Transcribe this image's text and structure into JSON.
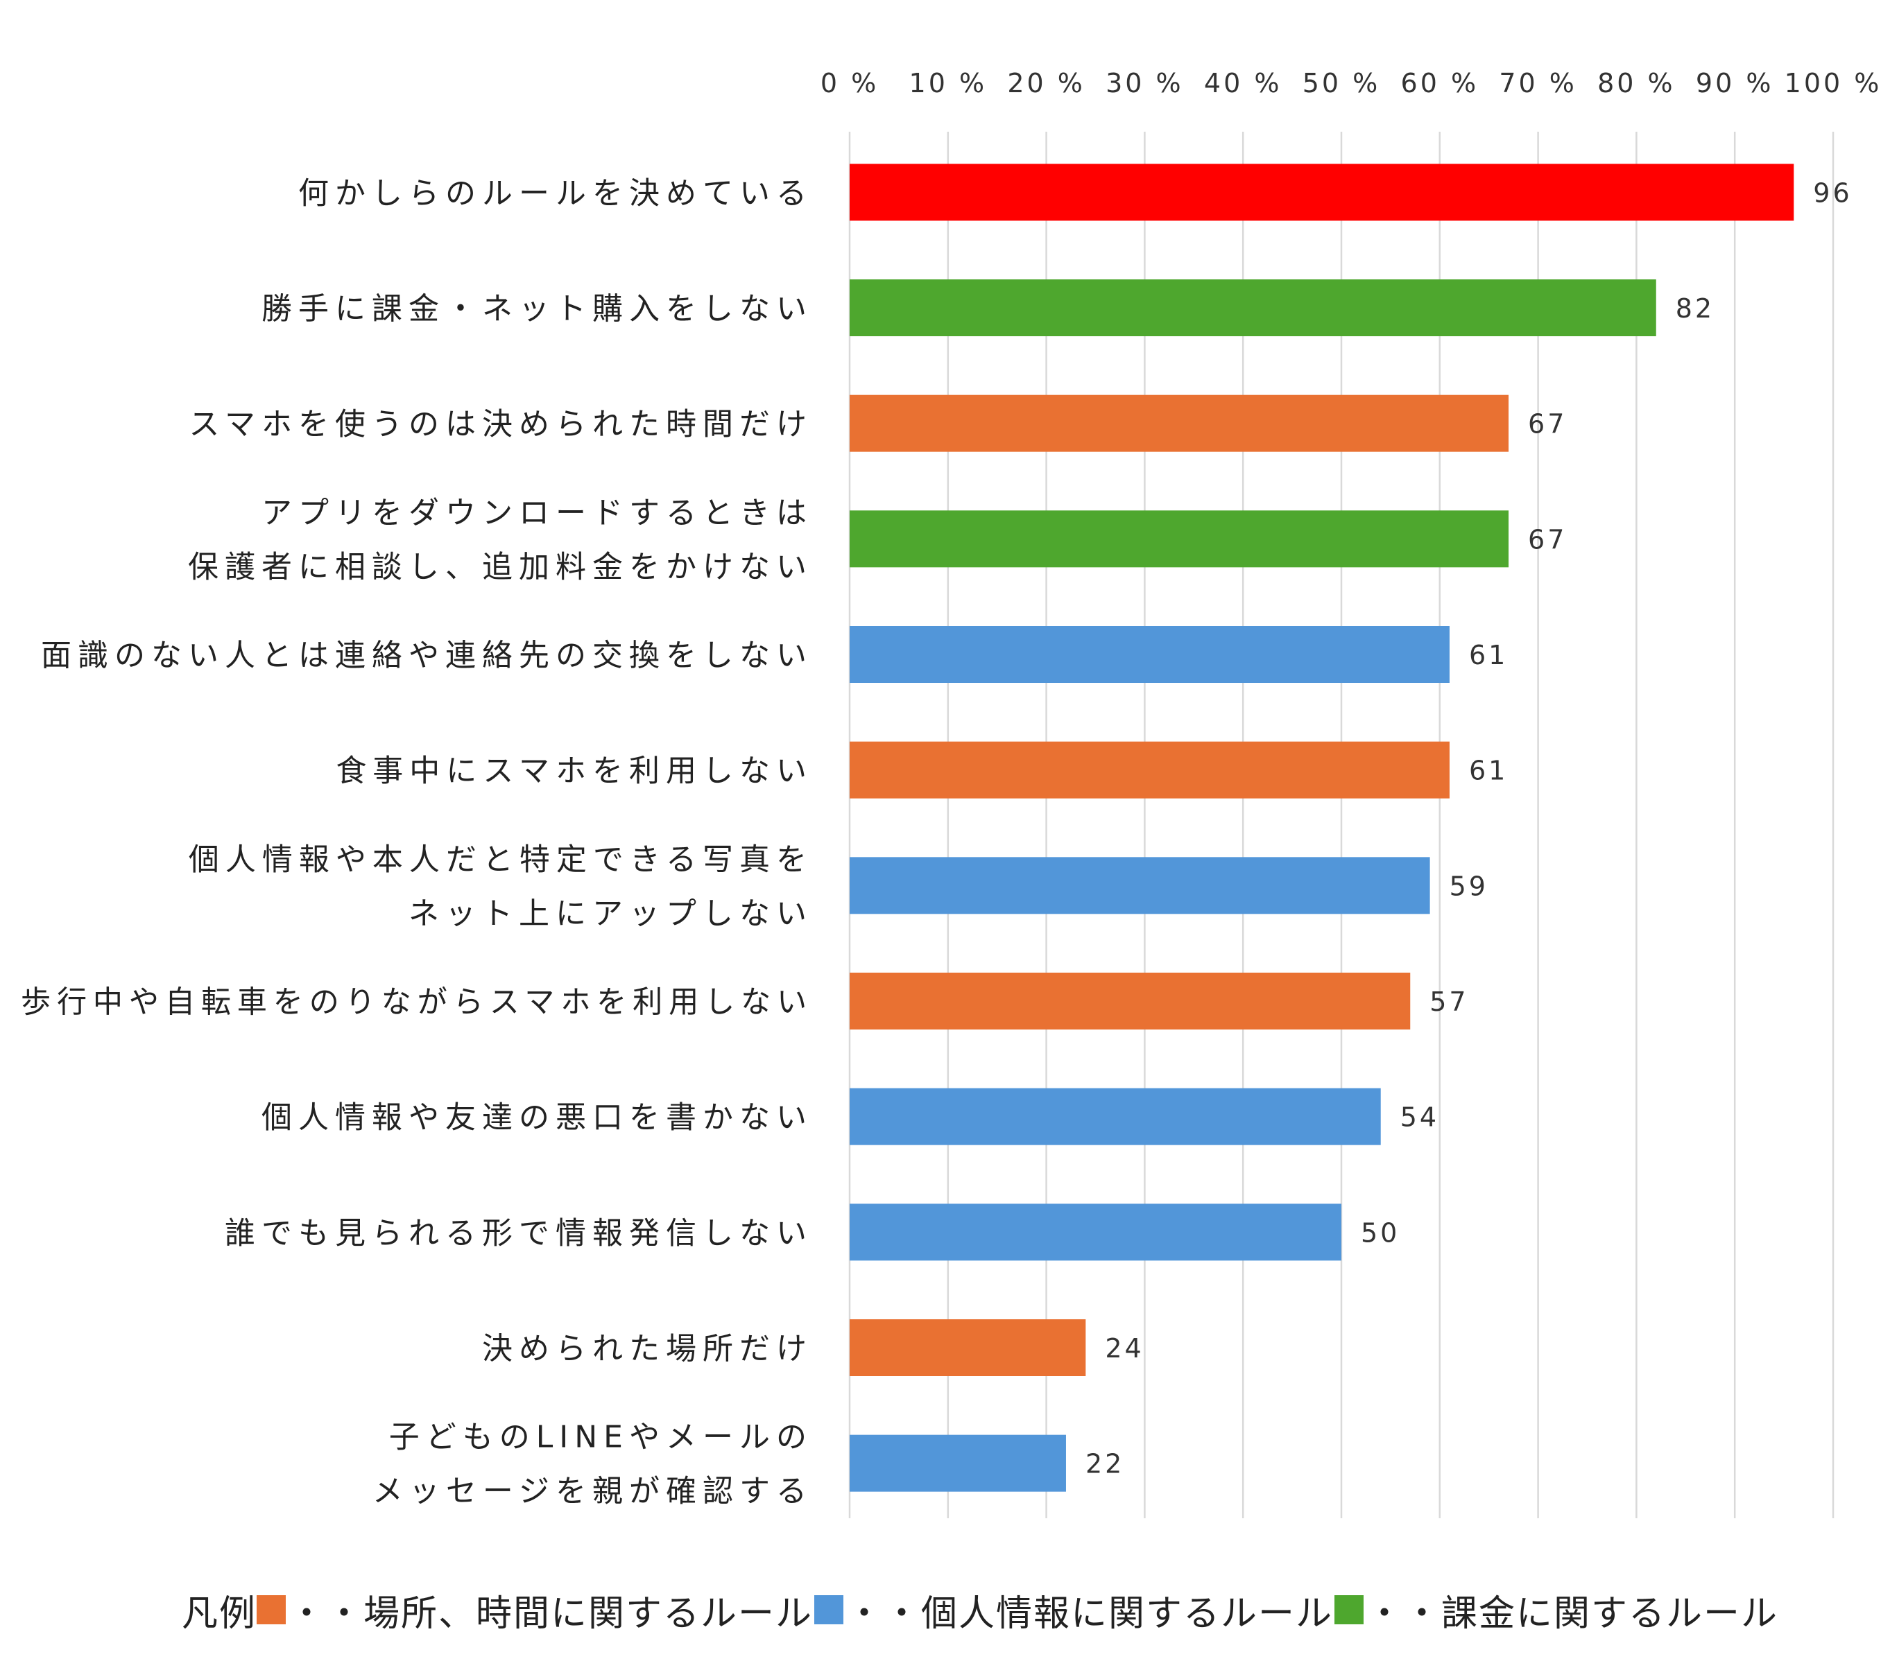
{
  "chart_data": {
    "type": "bar",
    "orientation": "horizontal",
    "xlim": [
      0,
      100
    ],
    "x_ticks": [
      0,
      10,
      20,
      30,
      40,
      50,
      60,
      70,
      80,
      90,
      100
    ],
    "x_tick_labels": [
      "0 %",
      "10 %",
      "20 %",
      "30 %",
      "40 %",
      "50 %",
      "60 %",
      "70 %",
      "80 %",
      "90 %",
      "100 %"
    ],
    "x_axis_position": "top",
    "grid": true,
    "categories": [
      [
        "何かしらのルールを決めている"
      ],
      [
        "勝手に課金・ネット購入をしない"
      ],
      [
        "スマホを使うのは決められた時間だけ"
      ],
      [
        "アプリをダウンロードするときは",
        "保護者に相談し、追加料金をかけない"
      ],
      [
        "面識のない人とは連絡や連絡先の交換をしない"
      ],
      [
        "食事中にスマホを利用しない"
      ],
      [
        "個人情報や本人だと特定できる写真を",
        "ネット上にアップしない"
      ],
      [
        "歩行中や自転車をのりながらスマホを利用しない"
      ],
      [
        "個人情報や友達の悪口を書かない"
      ],
      [
        "誰でも見られる形で情報発信しない"
      ],
      [
        "決められた場所だけ"
      ],
      [
        "子どものLINEやメールの",
        "メッセージを親が確認する"
      ]
    ],
    "values": [
      96,
      82,
      67,
      67,
      61,
      61,
      59,
      57,
      54,
      50,
      24,
      22
    ],
    "value_labels": [
      "96",
      "82",
      "67",
      "67",
      "61",
      "61",
      "59",
      "57",
      "54",
      "50",
      "24",
      "22"
    ],
    "bar_groups": [
      "overall",
      "billing",
      "place-time",
      "billing",
      "personal-info",
      "place-time",
      "personal-info",
      "place-time",
      "personal-info",
      "personal-info",
      "place-time",
      "personal-info"
    ],
    "colors": {
      "overall": "#ff0000",
      "place-time": "#e97132",
      "personal-info": "#5296d9",
      "billing": "#4ea72e",
      "grid": "#d9d9d9"
    }
  },
  "legend": {
    "title": "凡例",
    "position": "bottom",
    "items": [
      {
        "text": "・・場所、時間に関するルール",
        "color": "#e97132"
      },
      {
        "text": "・・個人情報に関するルール",
        "color": "#5296d9"
      },
      {
        "text": "・・課金に関するルール",
        "color": "#4ea72e"
      }
    ]
  }
}
